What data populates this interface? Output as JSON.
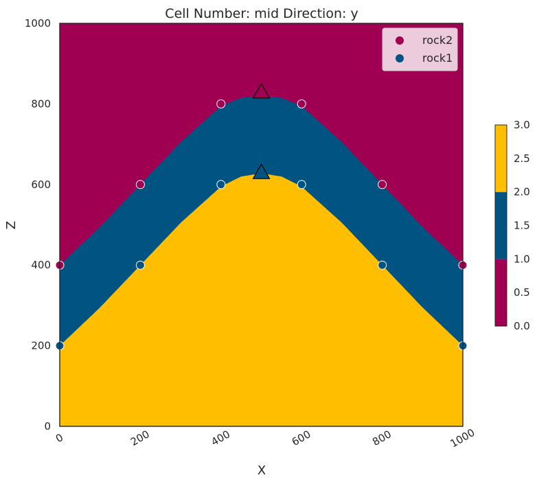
{
  "chart_data": {
    "type": "heatmap",
    "title": "Cell Number: mid Direction: y",
    "xlabel": "X",
    "ylabel": "Z",
    "xlim": [
      0,
      1000
    ],
    "ylim": [
      0,
      1000
    ],
    "x_ticks": [
      "0",
      "200",
      "400",
      "600",
      "800",
      "1000"
    ],
    "y_ticks": [
      "0",
      "200",
      "400",
      "600",
      "800",
      "1000"
    ],
    "grid": false,
    "colors": {
      "rock2": "#9f0052",
      "rock1": "#015482",
      "basement": "#ffbe00",
      "frame": "#262626"
    },
    "legend": {
      "placement": "top-right",
      "entries": [
        {
          "name": "rock2",
          "color": "#9f0052"
        },
        {
          "name": "rock1",
          "color": "#015482"
        }
      ]
    },
    "boundaries": [
      {
        "name": "rock2-rock1",
        "x": [
          0,
          100,
          200,
          300,
          400,
          450,
          500,
          550,
          600,
          700,
          800,
          900,
          1000
        ],
        "z": [
          400,
          495,
          600,
          705,
          795,
          815,
          820,
          815,
          795,
          705,
          600,
          495,
          400
        ]
      },
      {
        "name": "rock1-basement",
        "x": [
          0,
          100,
          200,
          300,
          400,
          450,
          500,
          550,
          600,
          700,
          800,
          900,
          1000
        ],
        "z": [
          200,
          295,
          400,
          505,
          595,
          620,
          628,
          620,
          595,
          505,
          400,
          295,
          200
        ]
      }
    ],
    "surface_points": [
      {
        "x": 0,
        "z": 400,
        "series": "rock2"
      },
      {
        "x": 200,
        "z": 600,
        "series": "rock2"
      },
      {
        "x": 400,
        "z": 800,
        "series": "rock2"
      },
      {
        "x": 600,
        "z": 800,
        "series": "rock2"
      },
      {
        "x": 800,
        "z": 600,
        "series": "rock2"
      },
      {
        "x": 1000,
        "z": 400,
        "series": "rock2"
      },
      {
        "x": 0,
        "z": 200,
        "series": "rock1"
      },
      {
        "x": 200,
        "z": 400,
        "series": "rock1"
      },
      {
        "x": 400,
        "z": 600,
        "series": "rock1"
      },
      {
        "x": 600,
        "z": 600,
        "series": "rock1"
      },
      {
        "x": 800,
        "z": 400,
        "series": "rock1"
      },
      {
        "x": 1000,
        "z": 200,
        "series": "rock1"
      }
    ],
    "orientations": [
      {
        "x": 500,
        "z": 830,
        "series": "rock2"
      },
      {
        "x": 500,
        "z": 630,
        "series": "rock1"
      }
    ],
    "colorbar": {
      "ticks": [
        "0.0",
        "0.5",
        "1.0",
        "1.5",
        "2.0",
        "2.5",
        "3.0"
      ],
      "range": [
        0,
        3
      ],
      "bands": [
        {
          "from": 0,
          "to": 1,
          "color": "#9f0052"
        },
        {
          "from": 1,
          "to": 2,
          "color": "#015482"
        },
        {
          "from": 2,
          "to": 3,
          "color": "#ffbe00"
        }
      ]
    }
  }
}
